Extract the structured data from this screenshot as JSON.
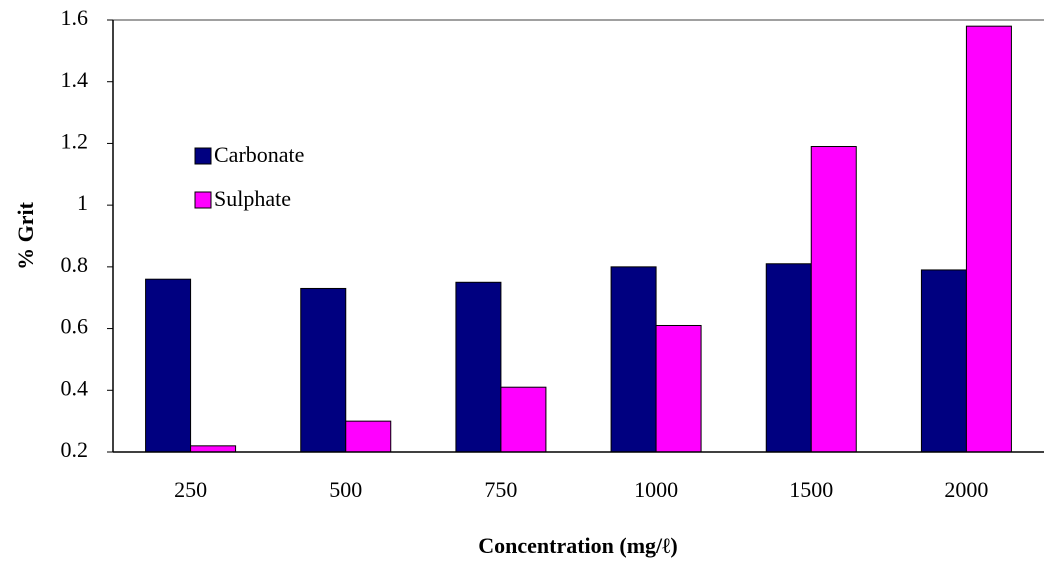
{
  "chart_data": {
    "type": "bar",
    "x_label": "Concentration (mg/ℓ)",
    "y_label": "% Grit",
    "categories": [
      "250",
      "500",
      "750",
      "1000",
      "1500",
      "2000"
    ],
    "series": [
      {
        "name": "Carbonate",
        "color": "#000080",
        "values": [
          0.76,
          0.73,
          0.75,
          0.8,
          0.81,
          0.79
        ]
      },
      {
        "name": "Sulphate",
        "color": "#ff00ff",
        "values": [
          0.22,
          0.3,
          0.41,
          0.61,
          1.19,
          1.58
        ]
      }
    ],
    "ylim": [
      0.2,
      1.6
    ],
    "yticks": [
      0.2,
      0.4,
      0.6,
      0.8,
      1,
      1.2,
      1.4,
      1.6
    ],
    "grid": false,
    "legend": "upper left"
  }
}
